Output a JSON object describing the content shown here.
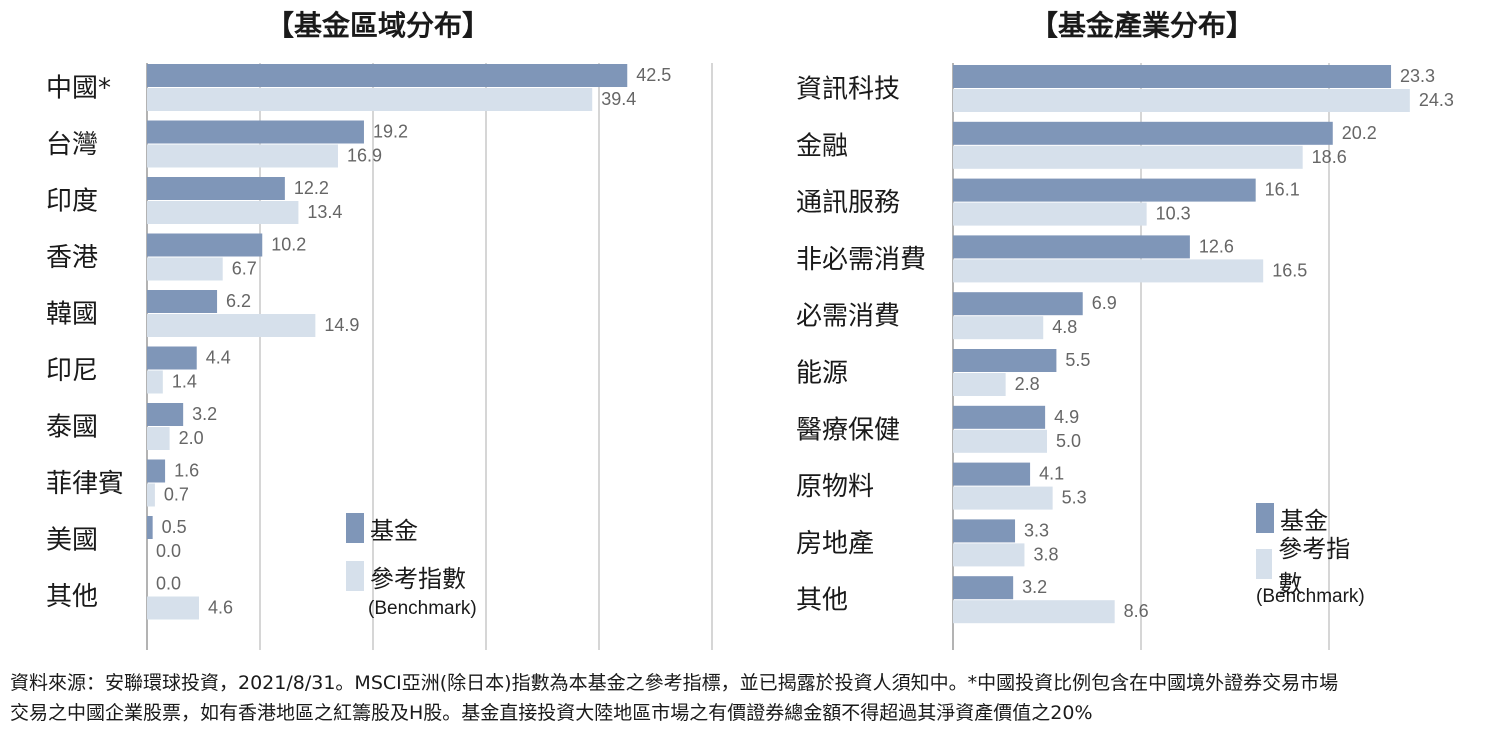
{
  "colors": {
    "fund": "#7f96b8",
    "benchmark": "#d6e0eb",
    "grid": "#c8c8c8",
    "axis": "#9a9a9a"
  },
  "chart_data": [
    {
      "type": "bar",
      "orientation": "horizontal",
      "title": "【基金區域分布】",
      "categories": [
        "中國*",
        "台灣",
        "印度",
        "香港",
        "韓國",
        "印尼",
        "泰國",
        "菲律賓",
        "美國",
        "其他"
      ],
      "series": [
        {
          "name": "基金",
          "values": [
            42.5,
            19.2,
            12.2,
            10.2,
            6.2,
            4.4,
            3.2,
            1.6,
            0.5,
            0.0
          ]
        },
        {
          "name": "參考指數 (Benchmark)",
          "values": [
            39.4,
            16.9,
            13.4,
            6.7,
            14.9,
            1.4,
            2.0,
            0.7,
            0.0,
            4.6
          ]
        }
      ],
      "xlim": [
        0,
        50
      ],
      "grid": true,
      "legend": "bottom-right",
      "legend_labels": [
        "基金",
        "參考指數",
        "(Benchmark)"
      ]
    },
    {
      "type": "bar",
      "orientation": "horizontal",
      "title": "【基金產業分布】",
      "categories": [
        "資訊科技",
        "金融",
        "通訊服務",
        "非必需消費",
        "必需消費",
        "能源",
        "醫療保健",
        "原物料",
        "房地產",
        "其他"
      ],
      "series": [
        {
          "name": "基金",
          "values": [
            23.3,
            20.2,
            16.1,
            12.6,
            6.9,
            5.5,
            4.9,
            4.1,
            3.3,
            3.2
          ]
        },
        {
          "name": "參考指數 (Benchmark)",
          "values": [
            24.3,
            18.6,
            10.3,
            16.5,
            4.8,
            2.8,
            5.0,
            5.3,
            3.8,
            8.6
          ]
        }
      ],
      "xlim": [
        0,
        30
      ],
      "grid": true,
      "legend": "bottom-right",
      "legend_labels": [
        "基金",
        "參考指數",
        "(Benchmark)"
      ]
    }
  ],
  "footnote": {
    "line1": "資料來源：安聯環球投資，2021/8/31。MSCI亞洲(除日本)指數為本基金之參考指標，並已揭露於投資人須知中。*中國投資比例包含在中國境外證券交易市場",
    "line2": "交易之中國企業股票，如有香港地區之紅籌股及H股。基金直接投資大陸地區市場之有價證券總金額不得超過其淨資產價值之20%"
  }
}
